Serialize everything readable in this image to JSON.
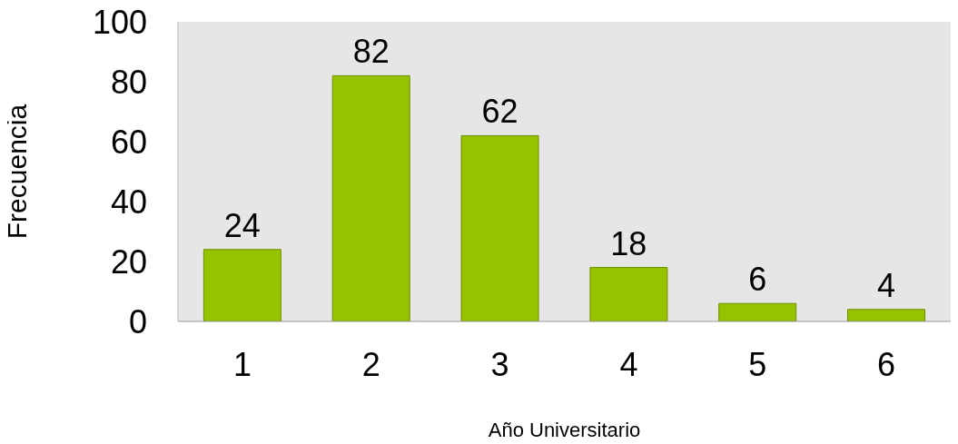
{
  "chart_data": {
    "type": "bar",
    "xlabel": "Año Universitario",
    "ylabel": "Frecuencia",
    "categories": [
      "1",
      "2",
      "3",
      "4",
      "5",
      "6"
    ],
    "values": [
      24,
      82,
      62,
      18,
      6,
      4
    ],
    "color": "#96c300",
    "ylim": [
      0,
      100
    ],
    "yticks": [
      0,
      20,
      40,
      60,
      80,
      100
    ],
    "data_labels": true,
    "grid": false,
    "legend": false
  }
}
